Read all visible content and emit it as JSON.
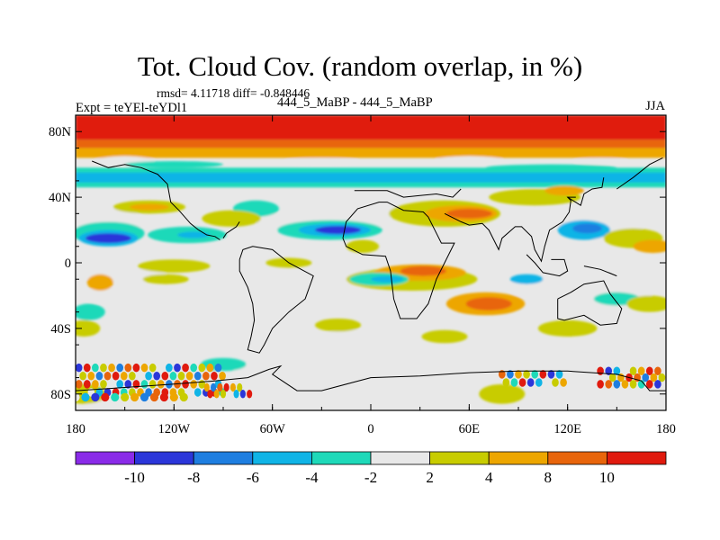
{
  "title": "Tot. Cloud Cov. (random overlap, in %)",
  "stats_line": "rmsd= 4.11718  diff= -0.848446",
  "experiment_label": "Expt = teYEl-teYDl1",
  "case_label": "444_5_MaBP - 444_5_MaBP",
  "season": "JJA",
  "chart_data": {
    "type": "heatmap",
    "title": "Tot. Cloud Cov. (random overlap, in %)",
    "field": "difference in total cloud cover, %",
    "x_axis": {
      "range": [
        -180,
        180
      ],
      "tick_labels": [
        "180",
        "120W",
        "60W",
        "0",
        "60E",
        "120E",
        "180"
      ]
    },
    "y_axis": {
      "range": [
        -90,
        90
      ],
      "tick_labels": [
        "80N",
        "40N",
        "0",
        "40S",
        "80S"
      ]
    },
    "colorbar": {
      "labels": [
        "-10",
        "-8",
        "-6",
        "-4",
        "-2",
        "2",
        "4",
        "8",
        "10"
      ],
      "colors": [
        "#8a2be8",
        "#2b36d9",
        "#1e7ee0",
        "#10b4e6",
        "#1ed9b9",
        "#e8e8e8",
        "#c8cc00",
        "#eda600",
        "#e8650b",
        "#e01a0e"
      ]
    },
    "zonal_bands": [
      {
        "lat_range": [
          75,
          90
        ],
        "diff": 10
      },
      {
        "lat_range": [
          70,
          75
        ],
        "diff": 8
      },
      {
        "lat_range": [
          64,
          70
        ],
        "diff": 4
      },
      {
        "lat_range": [
          46,
          58
        ],
        "diff": -4
      },
      {
        "lat_range": [
          49,
          55
        ],
        "diff": -6
      }
    ],
    "features": [
      {
        "lon": -160,
        "lat": 15,
        "diff": -10
      },
      {
        "lon": -20,
        "lat": 20,
        "diff": -10
      },
      {
        "lon": 60,
        "lat": 30,
        "diff": 8
      },
      {
        "lon": 70,
        "lat": -25,
        "diff": 8
      },
      {
        "lon": -110,
        "lat": 17,
        "diff": -6
      },
      {
        "lon": 30,
        "lat": -5,
        "diff": 4
      },
      {
        "lon": 130,
        "lat": 20,
        "diff": -8
      },
      {
        "lon": -110,
        "lat": -75,
        "diff": 10
      },
      {
        "lon": 100,
        "lat": -73,
        "diff": 8
      }
    ]
  }
}
